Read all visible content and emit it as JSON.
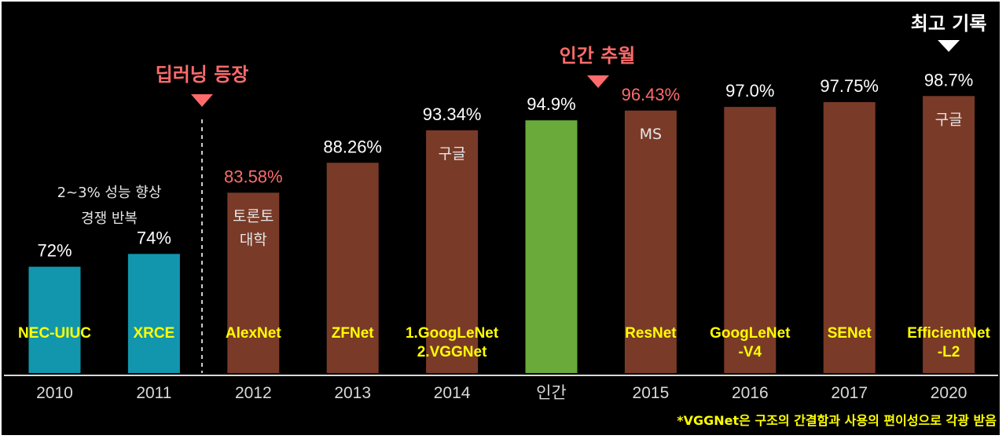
{
  "chart_data": {
    "type": "bar",
    "categories": [
      "2010",
      "2011",
      "2012",
      "2013",
      "2014",
      "인간",
      "2015",
      "2016",
      "2017",
      "2020"
    ],
    "values": [
      72,
      74,
      83.58,
      88.26,
      93.34,
      94.9,
      96.43,
      97.0,
      97.75,
      98.7
    ],
    "value_labels": [
      "72%",
      "74%",
      "83.58%",
      "88.26%",
      "93.34%",
      "94.9%",
      "96.43%",
      "97.0%",
      "97.75%",
      "98.7%"
    ],
    "model_names": [
      [
        "NEC-UIUC"
      ],
      [
        "XRCE"
      ],
      [
        "AlexNet"
      ],
      [
        "ZFNet"
      ],
      [
        "1.GoogLeNet",
        "2.VGGNet"
      ],
      [
        ""
      ],
      [
        "ResNet"
      ],
      [
        "GoogLeNet",
        "-V4"
      ],
      [
        "SENet"
      ],
      [
        "EfficientNet",
        "-L2"
      ]
    ],
    "inner_labels": [
      [],
      [],
      [
        "토론토",
        "대학"
      ],
      [],
      [
        "구글"
      ],
      [],
      [
        "MS"
      ],
      [],
      [],
      [
        "구글"
      ]
    ],
    "bar_colors": [
      "#1296ad",
      "#1296ad",
      "#7a3a28",
      "#7a3a28",
      "#7a3a28",
      "#6aaa3a",
      "#7a3a28",
      "#7a3a28",
      "#7a3a28",
      "#7a3a28"
    ],
    "value_label_colors": [
      "#ffffff",
      "#ffffff",
      "#ff6b6b",
      "#ffffff",
      "#ffffff",
      "#ffffff",
      "#ff6b6b",
      "#ffffff",
      "#ffffff",
      "#ffffff"
    ],
    "highlight_label_color": "#ff6b6b",
    "name_label_color": "#ffff00",
    "ylim": [
      60,
      100
    ],
    "annotations": {
      "early_note": [
        "2~3% 성능 향상",
        "경쟁 반복"
      ],
      "deep_learning": "딥러닝 등장",
      "human_surpassed": "인간 추월",
      "best_record": "최고 기록"
    },
    "footnote": "*VGGNet은 구조의 간결함과 사용의 편이성으로 각광 받음"
  }
}
